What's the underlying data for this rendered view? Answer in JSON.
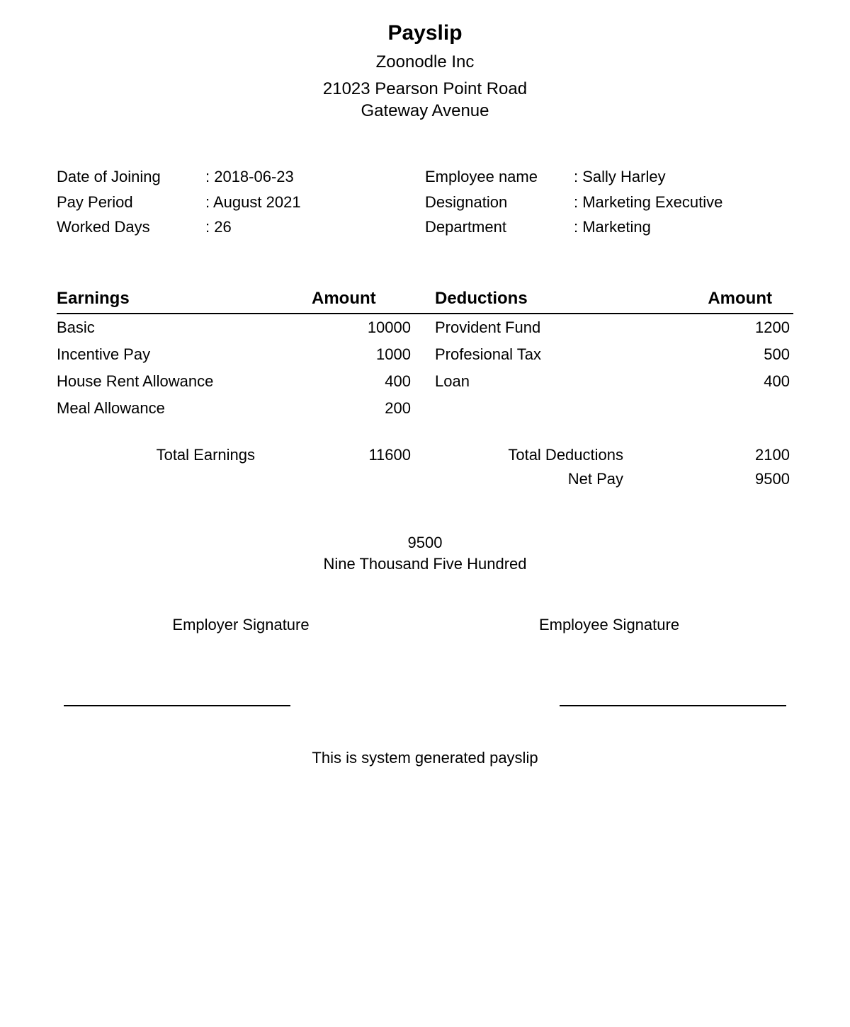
{
  "header": {
    "title": "Payslip",
    "company": "Zoonodle Inc",
    "address_line1": "21023 Pearson Point Road",
    "address_line2": "Gateway Avenue"
  },
  "info_left": {
    "labels": {
      "date_of_joining": "Date of Joining",
      "pay_period": "Pay Period",
      "worked_days": "Worked Days"
    },
    "values": {
      "date_of_joining": ": 2018-06-23",
      "pay_period": ": August 2021",
      "worked_days": ": 26"
    }
  },
  "info_right": {
    "labels": {
      "employee_name": "Employee name",
      "designation": "Designation",
      "department": "Department"
    },
    "values": {
      "employee_name": ": Sally Harley",
      "designation": ": Marketing Executive",
      "department": ": Marketing"
    }
  },
  "earnings": {
    "header_label": "Earnings",
    "header_amount": "Amount",
    "rows": [
      {
        "label": "Basic",
        "amount": "10000"
      },
      {
        "label": "Incentive Pay",
        "amount": "1000"
      },
      {
        "label": "House Rent Allowance",
        "amount": "400"
      },
      {
        "label": "Meal Allowance",
        "amount": "200"
      }
    ]
  },
  "deductions": {
    "header_label": "Deductions",
    "header_amount": "Amount",
    "rows": [
      {
        "label": "Provident Fund",
        "amount": "1200"
      },
      {
        "label": "Profesional Tax",
        "amount": "500"
      },
      {
        "label": "Loan",
        "amount": "400"
      }
    ]
  },
  "totals": {
    "total_earnings_label": "Total Earnings",
    "total_earnings_value": "11600",
    "total_deductions_label": "Total Deductions",
    "total_deductions_value": "2100",
    "net_pay_label": "Net Pay",
    "net_pay_value": "9500"
  },
  "netpay": {
    "amount": "9500",
    "words": "Nine Thousand Five Hundred"
  },
  "signatures": {
    "employer": "Employer Signature",
    "employee": "Employee Signature"
  },
  "footer": {
    "note": "This is system generated payslip"
  },
  "styling": {
    "background_color": "#ffffff",
    "text_color": "#000000",
    "border_color": "#000000",
    "title_fontsize": 30,
    "body_fontsize": 22,
    "header_fontsize": 24
  }
}
